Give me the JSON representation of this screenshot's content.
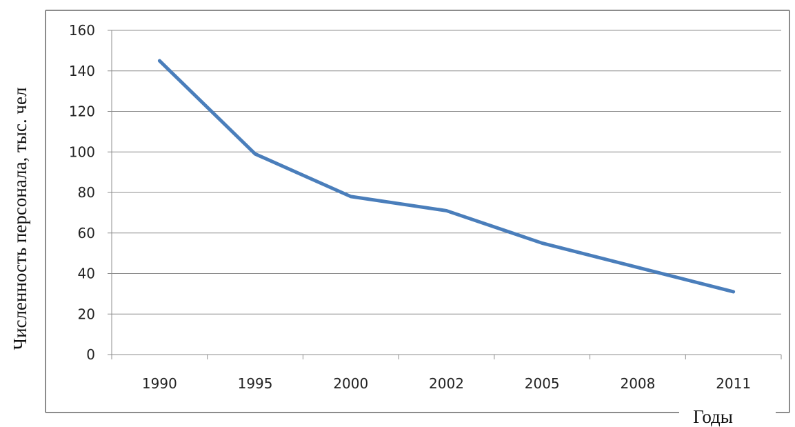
{
  "chart_data": {
    "type": "line",
    "title": "",
    "xlabel": "Годы",
    "ylabel": "Численность персонала, тыс. чел",
    "categories": [
      "1990",
      "1995",
      "2000",
      "2002",
      "2005",
      "2008",
      "2011"
    ],
    "series": [
      {
        "values": [
          145,
          99,
          78,
          71,
          55,
          43,
          31
        ],
        "color": "#4a7ebb"
      }
    ],
    "ylim": [
      0,
      160
    ],
    "yticks": [
      "0",
      "20",
      "40",
      "60",
      "80",
      "100",
      "120",
      "140",
      "160"
    ],
    "grid": true,
    "legend": "none"
  }
}
